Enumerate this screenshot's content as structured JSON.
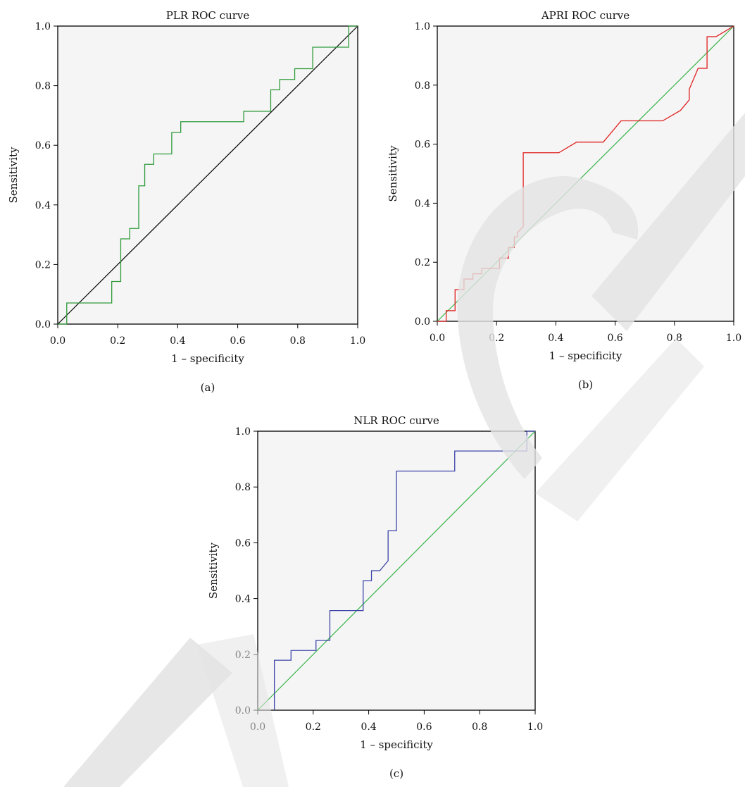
{
  "colors": {
    "watermark": "#e3e3e3",
    "frame": "#000000",
    "plot_bg": "#f5f5f5"
  },
  "chart_data": [
    {
      "type": "line",
      "panel_label": "(a)",
      "title": "PLR ROC curve",
      "xlabel": "1 – specificity",
      "ylabel": "Sensitivity",
      "xlim": [
        0,
        1
      ],
      "ylim": [
        0,
        1
      ],
      "xticks": [
        "0.0",
        "0.2",
        "0.4",
        "0.6",
        "0.8",
        "1.0"
      ],
      "yticks": [
        "0.0",
        "0.2",
        "0.4",
        "0.6",
        "0.8",
        "1.0"
      ],
      "curve_color": "#2e9a3a",
      "reference_color": "#000000",
      "series": [
        {
          "x": [
            0,
            0.03,
            0.03,
            0.18,
            0.18,
            0.21,
            0.21,
            0.24,
            0.24,
            0.27,
            0.27,
            0.29,
            0.29,
            0.32,
            0.32,
            0.38,
            0.38,
            0.41,
            0.41,
            0.62,
            0.62,
            0.71,
            0.71,
            0.74,
            0.74,
            0.79,
            0.79,
            0.85,
            0.85,
            0.97,
            0.97,
            1.0
          ],
          "y": [
            0,
            0,
            0.071,
            0.071,
            0.143,
            0.143,
            0.286,
            0.286,
            0.321,
            0.321,
            0.464,
            0.464,
            0.536,
            0.536,
            0.571,
            0.571,
            0.643,
            0.643,
            0.679,
            0.679,
            0.714,
            0.714,
            0.786,
            0.786,
            0.821,
            0.821,
            0.857,
            0.857,
            0.929,
            0.929,
            1.0,
            1.0
          ]
        }
      ]
    },
    {
      "type": "line",
      "panel_label": "(b)",
      "title": "APRI ROC curve",
      "xlabel": "1 – specificity",
      "ylabel": "Sensitivity",
      "xlim": [
        0,
        1
      ],
      "ylim": [
        0,
        1
      ],
      "xticks": [
        "0.0",
        "0.2",
        "0.4",
        "0.6",
        "0.8",
        "1.0"
      ],
      "yticks": [
        "0.0",
        "0.2",
        "0.4",
        "0.6",
        "0.8",
        "1.0"
      ],
      "curve_color": "#e02020",
      "reference_color": "#39b54a",
      "series": [
        {
          "x": [
            0,
            0.03,
            0.03,
            0.06,
            0.06,
            0.09,
            0.09,
            0.12,
            0.12,
            0.15,
            0.15,
            0.21,
            0.21,
            0.24,
            0.24,
            0.26,
            0.26,
            0.27,
            0.27,
            0.29,
            0.29,
            0.41,
            0.47,
            0.56,
            0.62,
            0.76,
            0.82,
            0.85,
            0.85,
            0.88,
            0.88,
            0.91,
            0.91,
            0.94,
            0.94,
            0.97,
            1.0
          ],
          "y": [
            0,
            0,
            0.036,
            0.036,
            0.107,
            0.107,
            0.143,
            0.143,
            0.161,
            0.161,
            0.179,
            0.179,
            0.214,
            0.214,
            0.25,
            0.25,
            0.286,
            0.286,
            0.3,
            0.321,
            0.571,
            0.571,
            0.607,
            0.607,
            0.679,
            0.679,
            0.714,
            0.75,
            0.786,
            0.857,
            0.857,
            0.857,
            0.964,
            0.964,
            0.964,
            0.982,
            1.0
          ]
        }
      ]
    },
    {
      "type": "line",
      "panel_label": "(c)",
      "title": "NLR ROC curve",
      "xlabel": "1 – specificity",
      "ylabel": "Sensitivity",
      "xlim": [
        0,
        1
      ],
      "ylim": [
        0,
        1
      ],
      "xticks": [
        "0.0",
        "0.2",
        "0.4",
        "0.6",
        "0.8",
        "1.0"
      ],
      "yticks": [
        "0.0",
        "0.2",
        "0.4",
        "0.6",
        "0.8",
        "1.0"
      ],
      "curve_color": "#3c44a8",
      "reference_color": "#39b54a",
      "series": [
        {
          "x": [
            0.06,
            0.06,
            0.12,
            0.12,
            0.21,
            0.21,
            0.26,
            0.26,
            0.38,
            0.38,
            0.41,
            0.41,
            0.44,
            0.47,
            0.47,
            0.5,
            0.5,
            0.71,
            0.71,
            0.97,
            0.97,
            1.0
          ],
          "y": [
            0,
            0.179,
            0.179,
            0.214,
            0.214,
            0.25,
            0.25,
            0.357,
            0.357,
            0.464,
            0.464,
            0.5,
            0.5,
            0.536,
            0.643,
            0.643,
            0.857,
            0.857,
            0.929,
            0.929,
            1.0,
            1.0
          ]
        }
      ]
    }
  ]
}
